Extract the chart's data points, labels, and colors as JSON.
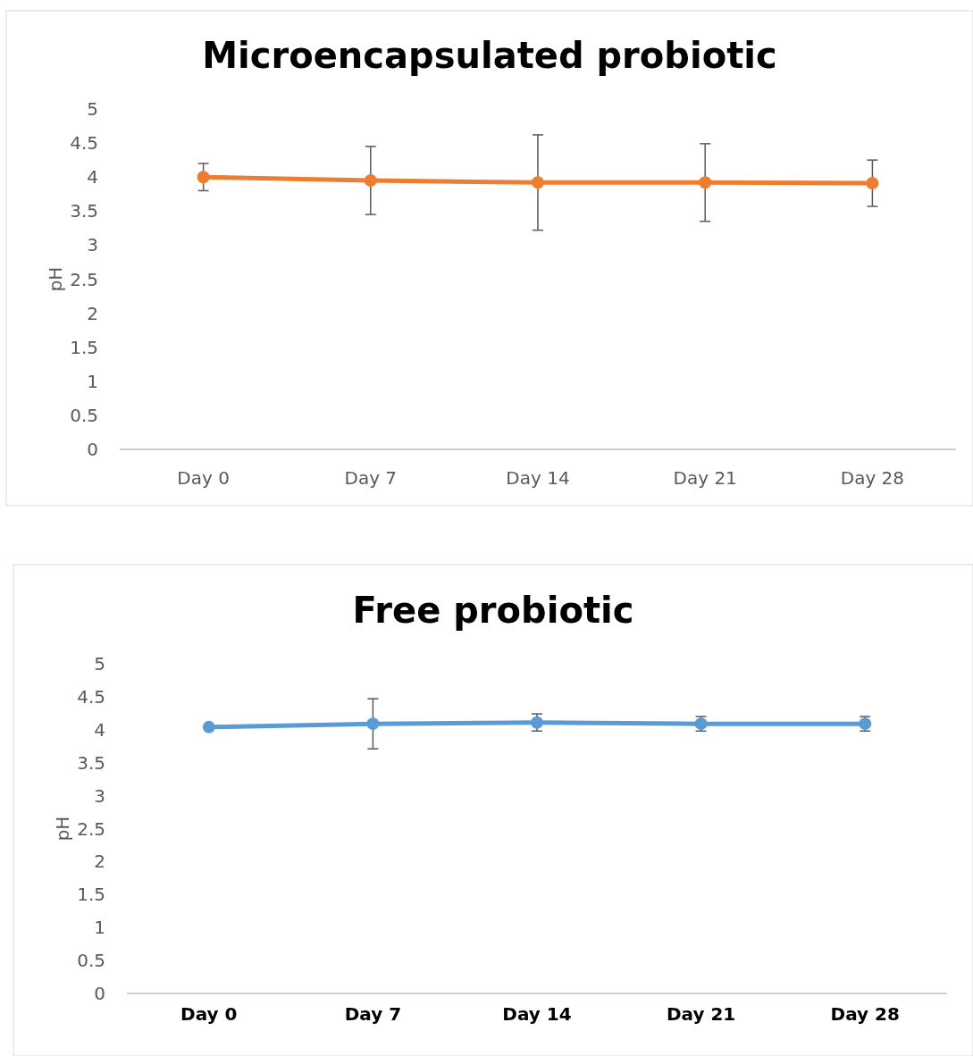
{
  "chart_data": [
    {
      "type": "line",
      "title": "Microencapsulated probiotic",
      "ylabel": "pH",
      "categories": [
        "Day 0",
        "Day 7",
        "Day 14",
        "Day 21",
        "Day 28"
      ],
      "series": [
        {
          "color": "#ed7d31",
          "values": [
            4.0,
            3.95,
            3.92,
            3.92,
            3.91
          ],
          "errors": [
            0.2,
            0.5,
            0.7,
            0.57,
            0.34
          ]
        }
      ],
      "ylim": [
        0,
        5
      ],
      "yticks": [
        0,
        0.5,
        1,
        1.5,
        2,
        2.5,
        3,
        3.5,
        4,
        4.5,
        5
      ],
      "marker": "circle"
    },
    {
      "type": "line",
      "title": "Free probiotic",
      "ylabel": "pH",
      "categories": [
        "Day 0",
        "Day 7",
        "Day 14",
        "Day 21",
        "Day 28"
      ],
      "series": [
        {
          "color": "#5b9bd5",
          "values": [
            4.04,
            4.09,
            4.11,
            4.09,
            4.09
          ],
          "errors": [
            null,
            0.38,
            0.13,
            0.11,
            0.11
          ]
        }
      ],
      "ylim": [
        0,
        5
      ],
      "yticks": [
        0,
        0.5,
        1,
        1.5,
        2,
        2.5,
        3,
        3.5,
        4,
        4.5,
        5
      ],
      "marker": "circle"
    }
  ]
}
